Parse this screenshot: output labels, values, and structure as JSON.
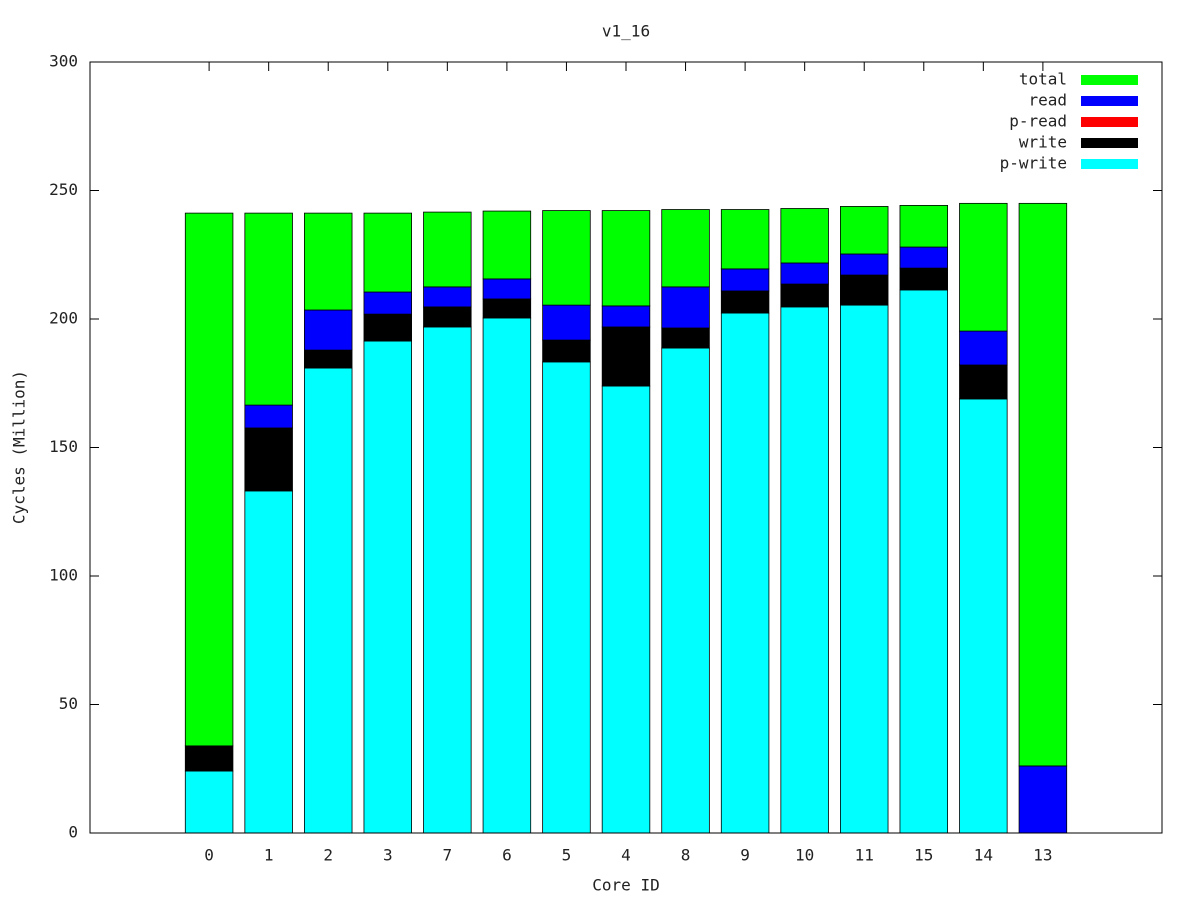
{
  "chart_data": {
    "type": "stacked_bar",
    "title": "v1_16",
    "x_label": "Core ID",
    "y_label": "Cycles (Million)",
    "categories": [
      "0",
      "1",
      "2",
      "3",
      "7",
      "6",
      "5",
      "4",
      "8",
      "9",
      "10",
      "11",
      "15",
      "14",
      "13"
    ],
    "series": [
      {
        "name": "p-write",
        "color": "#00ffff",
        "values": [
          24.1,
          133.1,
          180.9,
          191.4,
          196.9,
          200.4,
          183.3,
          173.9,
          188.7,
          202.3,
          204.7,
          205.4,
          211.3,
          168.9,
          0
        ]
      },
      {
        "name": "write",
        "color": "#000000",
        "values": [
          9.8,
          24.5,
          7.0,
          10.5,
          7.8,
          7.4,
          8.5,
          23.0,
          7.8,
          8.6,
          8.9,
          11.7,
          8.5,
          13.2,
          0
        ]
      },
      {
        "name": "p-read",
        "color": "#ff0000",
        "values": [
          0,
          0,
          0,
          0,
          0,
          0,
          0,
          0,
          0,
          0,
          0,
          0,
          0,
          0,
          0
        ]
      },
      {
        "name": "read",
        "color": "#0000ff",
        "values": [
          0,
          8.9,
          15.6,
          8.6,
          7.8,
          7.8,
          13.6,
          8.2,
          16.0,
          8.6,
          8.2,
          8.2,
          8.2,
          13.2,
          26.1
        ]
      },
      {
        "name": "total",
        "color": "#00ff00",
        "values": [
          207.3,
          74.7,
          37.7,
          30.7,
          29.1,
          26.4,
          36.8,
          37.1,
          30.1,
          23.1,
          21.2,
          18.5,
          16.2,
          49.7,
          218.9
        ]
      }
    ],
    "ylim": [
      0,
      300
    ],
    "yticks": [
      0,
      50,
      100,
      150,
      200,
      250,
      300
    ],
    "legend": "top-right"
  }
}
